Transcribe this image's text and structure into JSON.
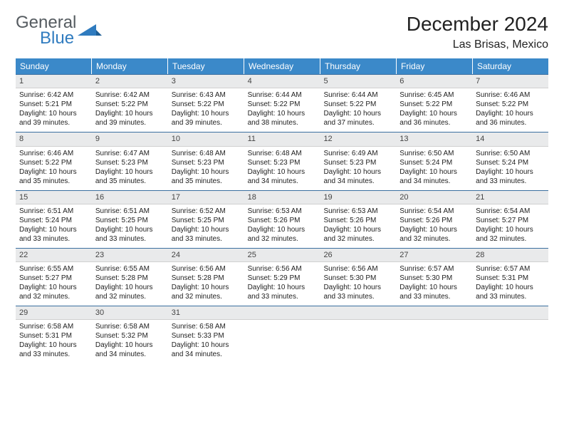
{
  "logo": {
    "word1": "General",
    "word2": "Blue",
    "text_gray": "#555b60",
    "text_blue": "#2f7bbf"
  },
  "header": {
    "title": "December 2024",
    "location": "Las Brisas, Mexico",
    "title_fontsize": 28,
    "location_fontsize": 16
  },
  "colors": {
    "header_bg": "#3b89c9",
    "header_text": "#ffffff",
    "daynum_bg": "#e9eaeb",
    "week_border": "#3b6fa0",
    "body_text": "#222222",
    "page_bg": "#ffffff"
  },
  "weekdays": [
    "Sunday",
    "Monday",
    "Tuesday",
    "Wednesday",
    "Thursday",
    "Friday",
    "Saturday"
  ],
  "weeks": [
    [
      {
        "n": "1",
        "sunrise": "Sunrise: 6:42 AM",
        "sunset": "Sunset: 5:21 PM",
        "day1": "Daylight: 10 hours",
        "day2": "and 39 minutes."
      },
      {
        "n": "2",
        "sunrise": "Sunrise: 6:42 AM",
        "sunset": "Sunset: 5:22 PM",
        "day1": "Daylight: 10 hours",
        "day2": "and 39 minutes."
      },
      {
        "n": "3",
        "sunrise": "Sunrise: 6:43 AM",
        "sunset": "Sunset: 5:22 PM",
        "day1": "Daylight: 10 hours",
        "day2": "and 39 minutes."
      },
      {
        "n": "4",
        "sunrise": "Sunrise: 6:44 AM",
        "sunset": "Sunset: 5:22 PM",
        "day1": "Daylight: 10 hours",
        "day2": "and 38 minutes."
      },
      {
        "n": "5",
        "sunrise": "Sunrise: 6:44 AM",
        "sunset": "Sunset: 5:22 PM",
        "day1": "Daylight: 10 hours",
        "day2": "and 37 minutes."
      },
      {
        "n": "6",
        "sunrise": "Sunrise: 6:45 AM",
        "sunset": "Sunset: 5:22 PM",
        "day1": "Daylight: 10 hours",
        "day2": "and 36 minutes."
      },
      {
        "n": "7",
        "sunrise": "Sunrise: 6:46 AM",
        "sunset": "Sunset: 5:22 PM",
        "day1": "Daylight: 10 hours",
        "day2": "and 36 minutes."
      }
    ],
    [
      {
        "n": "8",
        "sunrise": "Sunrise: 6:46 AM",
        "sunset": "Sunset: 5:22 PM",
        "day1": "Daylight: 10 hours",
        "day2": "and 35 minutes."
      },
      {
        "n": "9",
        "sunrise": "Sunrise: 6:47 AM",
        "sunset": "Sunset: 5:23 PM",
        "day1": "Daylight: 10 hours",
        "day2": "and 35 minutes."
      },
      {
        "n": "10",
        "sunrise": "Sunrise: 6:48 AM",
        "sunset": "Sunset: 5:23 PM",
        "day1": "Daylight: 10 hours",
        "day2": "and 35 minutes."
      },
      {
        "n": "11",
        "sunrise": "Sunrise: 6:48 AM",
        "sunset": "Sunset: 5:23 PM",
        "day1": "Daylight: 10 hours",
        "day2": "and 34 minutes."
      },
      {
        "n": "12",
        "sunrise": "Sunrise: 6:49 AM",
        "sunset": "Sunset: 5:23 PM",
        "day1": "Daylight: 10 hours",
        "day2": "and 34 minutes."
      },
      {
        "n": "13",
        "sunrise": "Sunrise: 6:50 AM",
        "sunset": "Sunset: 5:24 PM",
        "day1": "Daylight: 10 hours",
        "day2": "and 34 minutes."
      },
      {
        "n": "14",
        "sunrise": "Sunrise: 6:50 AM",
        "sunset": "Sunset: 5:24 PM",
        "day1": "Daylight: 10 hours",
        "day2": "and 33 minutes."
      }
    ],
    [
      {
        "n": "15",
        "sunrise": "Sunrise: 6:51 AM",
        "sunset": "Sunset: 5:24 PM",
        "day1": "Daylight: 10 hours",
        "day2": "and 33 minutes."
      },
      {
        "n": "16",
        "sunrise": "Sunrise: 6:51 AM",
        "sunset": "Sunset: 5:25 PM",
        "day1": "Daylight: 10 hours",
        "day2": "and 33 minutes."
      },
      {
        "n": "17",
        "sunrise": "Sunrise: 6:52 AM",
        "sunset": "Sunset: 5:25 PM",
        "day1": "Daylight: 10 hours",
        "day2": "and 33 minutes."
      },
      {
        "n": "18",
        "sunrise": "Sunrise: 6:53 AM",
        "sunset": "Sunset: 5:26 PM",
        "day1": "Daylight: 10 hours",
        "day2": "and 32 minutes."
      },
      {
        "n": "19",
        "sunrise": "Sunrise: 6:53 AM",
        "sunset": "Sunset: 5:26 PM",
        "day1": "Daylight: 10 hours",
        "day2": "and 32 minutes."
      },
      {
        "n": "20",
        "sunrise": "Sunrise: 6:54 AM",
        "sunset": "Sunset: 5:26 PM",
        "day1": "Daylight: 10 hours",
        "day2": "and 32 minutes."
      },
      {
        "n": "21",
        "sunrise": "Sunrise: 6:54 AM",
        "sunset": "Sunset: 5:27 PM",
        "day1": "Daylight: 10 hours",
        "day2": "and 32 minutes."
      }
    ],
    [
      {
        "n": "22",
        "sunrise": "Sunrise: 6:55 AM",
        "sunset": "Sunset: 5:27 PM",
        "day1": "Daylight: 10 hours",
        "day2": "and 32 minutes."
      },
      {
        "n": "23",
        "sunrise": "Sunrise: 6:55 AM",
        "sunset": "Sunset: 5:28 PM",
        "day1": "Daylight: 10 hours",
        "day2": "and 32 minutes."
      },
      {
        "n": "24",
        "sunrise": "Sunrise: 6:56 AM",
        "sunset": "Sunset: 5:28 PM",
        "day1": "Daylight: 10 hours",
        "day2": "and 32 minutes."
      },
      {
        "n": "25",
        "sunrise": "Sunrise: 6:56 AM",
        "sunset": "Sunset: 5:29 PM",
        "day1": "Daylight: 10 hours",
        "day2": "and 33 minutes."
      },
      {
        "n": "26",
        "sunrise": "Sunrise: 6:56 AM",
        "sunset": "Sunset: 5:30 PM",
        "day1": "Daylight: 10 hours",
        "day2": "and 33 minutes."
      },
      {
        "n": "27",
        "sunrise": "Sunrise: 6:57 AM",
        "sunset": "Sunset: 5:30 PM",
        "day1": "Daylight: 10 hours",
        "day2": "and 33 minutes."
      },
      {
        "n": "28",
        "sunrise": "Sunrise: 6:57 AM",
        "sunset": "Sunset: 5:31 PM",
        "day1": "Daylight: 10 hours",
        "day2": "and 33 minutes."
      }
    ],
    [
      {
        "n": "29",
        "sunrise": "Sunrise: 6:58 AM",
        "sunset": "Sunset: 5:31 PM",
        "day1": "Daylight: 10 hours",
        "day2": "and 33 minutes."
      },
      {
        "n": "30",
        "sunrise": "Sunrise: 6:58 AM",
        "sunset": "Sunset: 5:32 PM",
        "day1": "Daylight: 10 hours",
        "day2": "and 34 minutes."
      },
      {
        "n": "31",
        "sunrise": "Sunrise: 6:58 AM",
        "sunset": "Sunset: 5:33 PM",
        "day1": "Daylight: 10 hours",
        "day2": "and 34 minutes."
      },
      {
        "n": "",
        "sunrise": "",
        "sunset": "",
        "day1": "",
        "day2": "",
        "empty": true
      },
      {
        "n": "",
        "sunrise": "",
        "sunset": "",
        "day1": "",
        "day2": "",
        "empty": true
      },
      {
        "n": "",
        "sunrise": "",
        "sunset": "",
        "day1": "",
        "day2": "",
        "empty": true
      },
      {
        "n": "",
        "sunrise": "",
        "sunset": "",
        "day1": "",
        "day2": "",
        "empty": true
      }
    ]
  ]
}
